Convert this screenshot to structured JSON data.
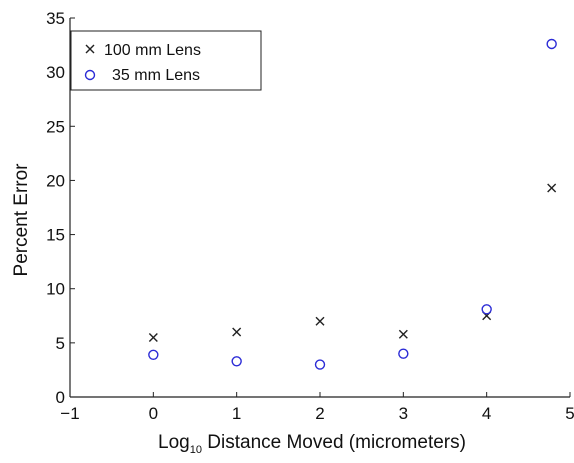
{
  "chart_data": {
    "type": "scatter",
    "xlabel_main": "Log",
    "xlabel_sub": "10",
    "xlabel_rest": " Distance Moved (micrometers)",
    "ylabel": "Percent Error",
    "xlim": [
      -1,
      5
    ],
    "ylim": [
      0,
      35
    ],
    "xticks": [
      -1,
      0,
      1,
      2,
      3,
      4,
      5
    ],
    "xtick_labels": [
      "−1",
      "0",
      "1",
      "2",
      "3",
      "4",
      "5"
    ],
    "yticks": [
      0,
      5,
      10,
      15,
      20,
      25,
      30,
      35
    ],
    "ytick_labels": [
      "0",
      "5",
      "10",
      "15",
      "20",
      "25",
      "30",
      "35"
    ],
    "grid": false,
    "legend_position": "top-left",
    "series": [
      {
        "name": "100 mm Lens",
        "marker": "x",
        "color": "#222222",
        "x": [
          0,
          1,
          2,
          3,
          4,
          4.78
        ],
        "y": [
          5.5,
          6.0,
          7.0,
          5.8,
          7.5,
          19.3
        ]
      },
      {
        "name": "35 mm Lens",
        "marker": "o",
        "color": "#2b2bd6",
        "x": [
          0,
          1,
          2,
          3,
          4,
          4.78
        ],
        "y": [
          3.9,
          3.3,
          3.0,
          4.0,
          8.1,
          32.6
        ]
      }
    ]
  }
}
